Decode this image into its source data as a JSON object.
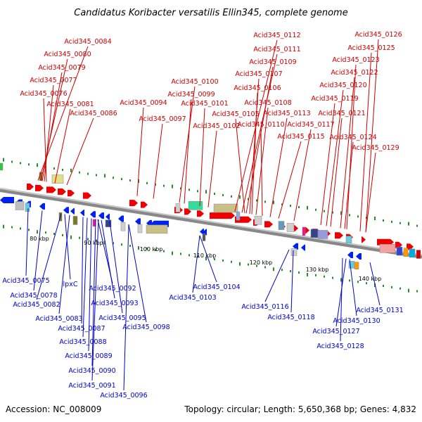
{
  "title": "Candidatus Koribacter versatilis Ellin345, complete genome",
  "footer": {
    "accession": "Accession: NC_008009",
    "topology": "Topology: circular; Length: 5,650,368 bp; Genes: 4,832"
  },
  "colors": {
    "forward": "#ee0000",
    "reverse": "#0022ee",
    "top_label": "#cc0000",
    "bottom_label": "#0000cc",
    "backbone": "#888888",
    "tick": "#2a8a2a"
  },
  "scale_labels": [
    "80 kbp",
    "90 kbp",
    "100 kbp",
    "110 kbp",
    "120 kbp",
    "130 kbp",
    "140 kbp"
  ],
  "top_labels": [
    "Acid345_0084",
    "Acid345_0080",
    "Acid345_0079",
    "Acid345_0077",
    "Acid345_0076",
    "Acid345_0081",
    "Acid345_0086",
    "Acid345_0094",
    "Acid345_0097",
    "Acid345_0100",
    "Acid345_0099",
    "Acid345_0101",
    "Acid345_0102",
    "Acid345_0112",
    "Acid345_0111",
    "Acid345_0109",
    "Acid345_0107",
    "Acid345_0106",
    "Acid345_0108",
    "Acid345_0105",
    "Acid345_0110",
    "Acid345_0113",
    "Acid345_0117",
    "Acid345_0115",
    "Acid345_0126",
    "Acid345_0125",
    "Acid345_0123",
    "Acid345_0122",
    "Acid345_0120",
    "Acid345_0119",
    "Acid345_0121",
    "Acid345_0124",
    "Acid345_0129"
  ],
  "bottom_labels": [
    "Acid345_0075",
    "Acid345_0078",
    "lpxC",
    "Acid345_0082",
    "Acid345_0083",
    "Acid345_0092",
    "Acid345_0093",
    "Acid345_0087",
    "Acid345_0095",
    "Acid345_0098",
    "Acid345_0088",
    "Acid345_0089",
    "Acid345_0090",
    "Acid345_0091",
    "Acid345_0096",
    "Acid345_0104",
    "Acid345_0103",
    "Acid345_0116",
    "Acid345_0118",
    "Acid345_0131",
    "Acid345_0130",
    "Acid345_0127",
    "Acid345_0128"
  ]
}
